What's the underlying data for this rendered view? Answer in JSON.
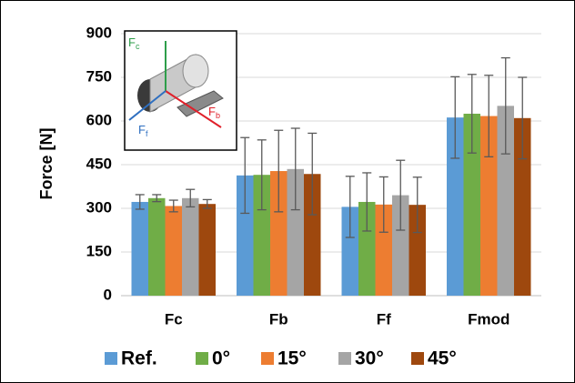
{
  "chart_data": {
    "type": "bar",
    "y_label": "Force [N]",
    "categories": [
      "Fc",
      "Fb",
      "Ff",
      "Fmod"
    ],
    "series": [
      {
        "name": "Ref.",
        "color": "#5b9bd5",
        "values": [
          322,
          413,
          305,
          612
        ],
        "errors": [
          25,
          130,
          105,
          140
        ]
      },
      {
        "name": "0°",
        "color": "#70ad47",
        "values": [
          335,
          415,
          322,
          625
        ],
        "errors": [
          12,
          120,
          100,
          135
        ]
      },
      {
        "name": "15°",
        "color": "#ed7d31",
        "values": [
          308,
          428,
          313,
          617
        ],
        "errors": [
          20,
          140,
          95,
          140
        ]
      },
      {
        "name": "30°",
        "color": "#a5a5a5",
        "values": [
          335,
          435,
          345,
          652
        ],
        "errors": [
          30,
          140,
          120,
          165
        ]
      },
      {
        "name": "45°",
        "color": "#9e480e",
        "values": [
          315,
          418,
          312,
          610
        ],
        "errors": [
          15,
          140,
          95,
          140
        ]
      }
    ],
    "ylim": [
      0,
      900
    ],
    "yticks": [
      0,
      150,
      300,
      450,
      600,
      750,
      900
    ],
    "grid": true,
    "legend": "bottom",
    "inset": {
      "labels": [
        {
          "main": "F",
          "sub": "c",
          "color": "#2e9e4a"
        },
        {
          "main": "F",
          "sub": "b",
          "color": "#e0202a"
        },
        {
          "main": "F",
          "sub": "f",
          "color": "#2f6fc0"
        }
      ]
    }
  }
}
